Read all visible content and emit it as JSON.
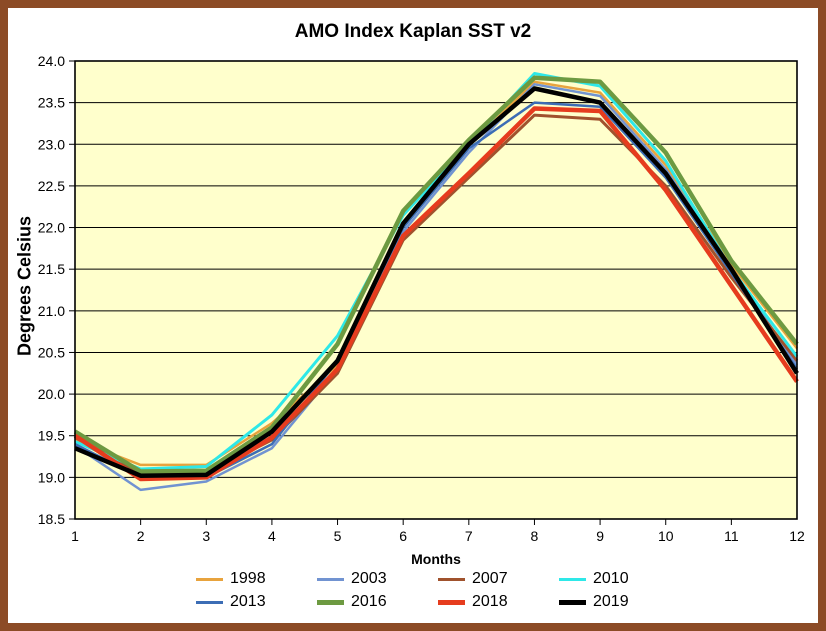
{
  "frame": {
    "border_color": "#8C4B26",
    "outer_background": "#FFFFFF"
  },
  "chart_data": {
    "type": "line",
    "title": "AMO Index Kaplan SST v2",
    "xlabel": "Months",
    "ylabel": "Degrees Celsius",
    "plot_background": "#FFFFCC",
    "grid": true,
    "gridline_color": "#000000",
    "x": [
      1,
      2,
      3,
      4,
      5,
      6,
      7,
      8,
      9,
      10,
      11,
      12
    ],
    "xlim": [
      1,
      12
    ],
    "ylim": [
      18.5,
      24.0
    ],
    "ytick_step": 0.5,
    "ytick_labels": [
      "18.5",
      "19.0",
      "19.5",
      "20.0",
      "20.5",
      "21.0",
      "21.5",
      "22.0",
      "22.5",
      "23.0",
      "23.5",
      "24.0"
    ],
    "legend_position": "bottom",
    "legend_order": [
      "1998",
      "2003",
      "2007",
      "2010",
      "2013",
      "2016",
      "2018",
      "2019"
    ],
    "series": [
      {
        "name": "1998",
        "color": "#E8A33D",
        "line_width": 2.5,
        "values": [
          19.45,
          19.15,
          19.15,
          19.65,
          20.35,
          22.05,
          22.98,
          23.75,
          23.62,
          22.75,
          21.55,
          20.55
        ]
      },
      {
        "name": "2003",
        "color": "#7193D1",
        "line_width": 2.5,
        "values": [
          19.38,
          18.85,
          18.95,
          19.35,
          20.3,
          21.95,
          22.9,
          23.72,
          23.58,
          22.7,
          21.5,
          20.35
        ]
      },
      {
        "name": "2007",
        "color": "#A0522D",
        "line_width": 3,
        "values": [
          19.48,
          19.05,
          19.05,
          19.45,
          20.25,
          21.85,
          22.6,
          23.35,
          23.3,
          22.5,
          21.4,
          20.4
        ]
      },
      {
        "name": "2010",
        "color": "#2EE8E8",
        "line_width": 3,
        "values": [
          19.43,
          19.1,
          19.13,
          19.75,
          20.7,
          22.15,
          23.0,
          23.85,
          23.7,
          22.8,
          21.5,
          20.45
        ]
      },
      {
        "name": "2013",
        "color": "#3C6DB5",
        "line_width": 2.5,
        "values": [
          19.4,
          19.0,
          19.0,
          19.4,
          20.4,
          22.0,
          22.95,
          23.5,
          23.45,
          22.6,
          21.45,
          20.3
        ]
      },
      {
        "name": "2016",
        "color": "#6D9A41",
        "line_width": 4.5,
        "values": [
          19.55,
          19.07,
          19.08,
          19.6,
          20.6,
          22.2,
          23.05,
          23.8,
          23.75,
          22.9,
          21.6,
          20.6
        ]
      },
      {
        "name": "2018",
        "color": "#E63C1E",
        "line_width": 4.5,
        "values": [
          19.5,
          18.98,
          19.0,
          19.48,
          20.3,
          21.9,
          22.65,
          23.43,
          23.4,
          22.45,
          21.3,
          20.15
        ]
      },
      {
        "name": "2019",
        "color": "#000000",
        "line_width": 4.5,
        "values": [
          19.35,
          19.02,
          19.03,
          19.55,
          20.4,
          22.05,
          23.0,
          23.67,
          23.5,
          22.65,
          21.5,
          20.25
        ]
      }
    ]
  }
}
